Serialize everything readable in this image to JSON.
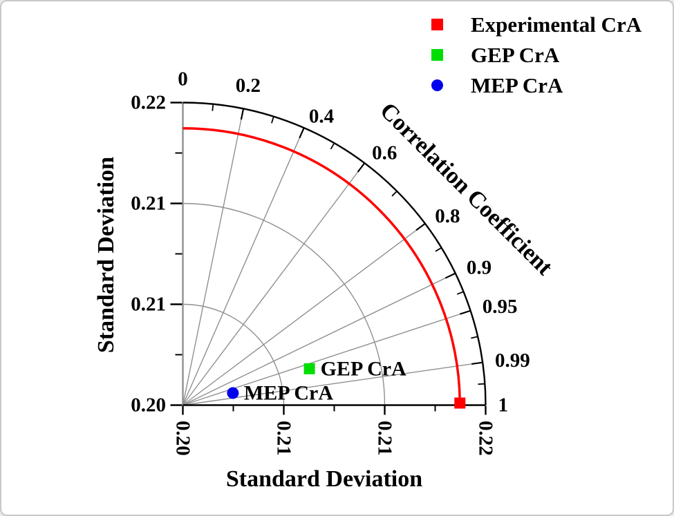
{
  "figure": {
    "background": "#ffffff",
    "border_color": "#c8c8c8"
  },
  "titles": {
    "x_axis": "Standard Deviation",
    "y_axis": "Standard Deviation",
    "angular_axis": "Correlation Coefficient"
  },
  "chart_data": {
    "type": "scatter",
    "variant": "taylor_diagram",
    "grid": true,
    "grid_color": "#8f8f8f",
    "axis_color": "#000000",
    "radial_axis": {
      "label": "Standard Deviation",
      "min": 0.2,
      "max": 0.22,
      "major_ticks": [
        {
          "value": 0.2,
          "label": "0.20"
        },
        {
          "value": 0.206667,
          "label": "0.21"
        },
        {
          "value": 0.213333,
          "label": "0.21"
        },
        {
          "value": 0.22,
          "label": "0.22"
        }
      ],
      "minor_tick_values": [
        0.203333,
        0.21,
        0.216667
      ]
    },
    "angular_axis": {
      "label": "Correlation Coefficient",
      "major_ticks": [
        {
          "value": 0,
          "label": "0"
        },
        {
          "value": 0.2,
          "label": "0.2"
        },
        {
          "value": 0.4,
          "label": "0.4"
        },
        {
          "value": 0.6,
          "label": "0.6"
        },
        {
          "value": 0.8,
          "label": "0.8"
        },
        {
          "value": 0.9,
          "label": "0.9"
        },
        {
          "value": 0.95,
          "label": "0.95"
        },
        {
          "value": 0.99,
          "label": "0.99"
        },
        {
          "value": 1,
          "label": "1"
        }
      ],
      "minor_tick_values": [
        0.1,
        0.3,
        0.5,
        0.707,
        0.854,
        0.927,
        0.974,
        0.9975
      ]
    },
    "reference": {
      "name": "Experimental CrA",
      "std_dev": 0.2183,
      "color": "#ff0000"
    },
    "points": [
      {
        "name": "Experimental CrA",
        "std_dev": 0.2183,
        "correlation": 1.0,
        "marker": "square",
        "color": "#ff0000",
        "show_label": false
      },
      {
        "name": "GEP CrA",
        "std_dev": 0.2087,
        "correlation": 0.961,
        "marker": "square",
        "color": "#00dd00",
        "show_label": true
      },
      {
        "name": "MEP CrA",
        "std_dev": 0.2034,
        "correlation": 0.972,
        "marker": "circle",
        "color": "#0000ee",
        "show_label": true
      }
    ]
  }
}
